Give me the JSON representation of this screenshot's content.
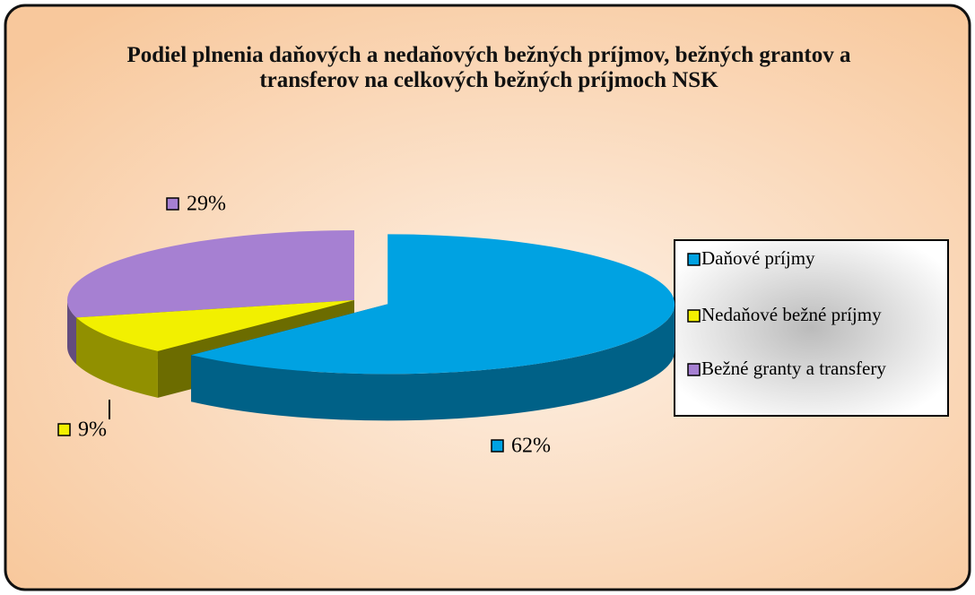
{
  "chart_data": {
    "type": "pie3d",
    "title": "Podiel plnenia daňových a nedaňových bežných príjmov, bežných grantov a transferov na celkových bežných príjmoch NSK",
    "categories": [
      "Daňové príjmy",
      "Nedaňové bežné príjmy",
      "Bežné granty a transfery"
    ],
    "values": [
      62,
      9,
      29
    ],
    "value_labels": [
      "62%",
      "9%",
      "29%"
    ],
    "colors": [
      "#00a2e2",
      "#f2f000",
      "#a680d2"
    ],
    "legend": "right"
  }
}
